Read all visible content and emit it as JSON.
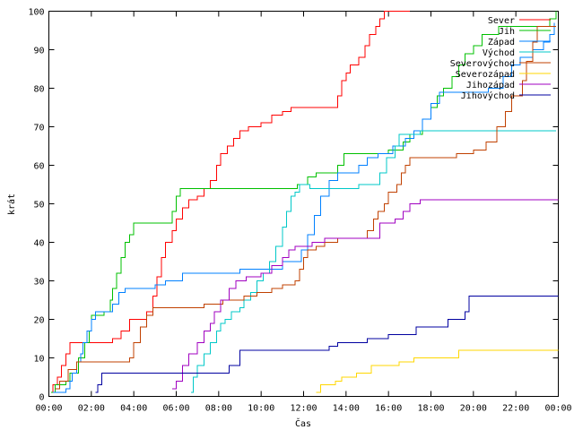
{
  "chart_data": {
    "type": "line",
    "step": true,
    "title": "",
    "xlabel": "Čas",
    "ylabel": "krát",
    "xlim": [
      0,
      24
    ],
    "ylim": [
      0,
      100
    ],
    "grid": false,
    "legend_position": "top-right",
    "x_ticks": [
      {
        "value": 0,
        "label": "00:00"
      },
      {
        "value": 2,
        "label": "02:00"
      },
      {
        "value": 4,
        "label": "04:00"
      },
      {
        "value": 6,
        "label": "06:00"
      },
      {
        "value": 8,
        "label": "08:00"
      },
      {
        "value": 10,
        "label": "10:00"
      },
      {
        "value": 12,
        "label": "12:00"
      },
      {
        "value": 14,
        "label": "14:00"
      },
      {
        "value": 16,
        "label": "16:00"
      },
      {
        "value": 18,
        "label": "18:00"
      },
      {
        "value": 20,
        "label": "20:00"
      },
      {
        "value": 22,
        "label": "22:00"
      },
      {
        "value": 24,
        "label": "00:00"
      }
    ],
    "y_ticks": [
      {
        "value": 0,
        "label": "0"
      },
      {
        "value": 10,
        "label": "10"
      },
      {
        "value": 20,
        "label": "20"
      },
      {
        "value": 30,
        "label": "30"
      },
      {
        "value": 40,
        "label": "40"
      },
      {
        "value": 50,
        "label": "50"
      },
      {
        "value": 60,
        "label": "60"
      },
      {
        "value": 70,
        "label": "70"
      },
      {
        "value": 80,
        "label": "80"
      },
      {
        "value": 90,
        "label": "90"
      },
      {
        "value": 100,
        "label": "100"
      }
    ],
    "series": [
      {
        "name": "Sever",
        "color": "#ff0000",
        "points": [
          [
            0.1,
            1
          ],
          [
            0.2,
            3
          ],
          [
            0.4,
            5
          ],
          [
            0.6,
            8
          ],
          [
            0.8,
            11
          ],
          [
            1.0,
            14
          ],
          [
            3.0,
            15
          ],
          [
            3.4,
            17
          ],
          [
            3.8,
            20
          ],
          [
            4.6,
            22
          ],
          [
            4.9,
            26
          ],
          [
            5.1,
            31
          ],
          [
            5.3,
            36
          ],
          [
            5.5,
            40
          ],
          [
            5.8,
            43
          ],
          [
            6.0,
            46
          ],
          [
            6.3,
            49
          ],
          [
            6.6,
            51
          ],
          [
            7.0,
            52
          ],
          [
            7.3,
            54
          ],
          [
            7.6,
            56
          ],
          [
            7.9,
            60
          ],
          [
            8.1,
            63
          ],
          [
            8.4,
            65
          ],
          [
            8.7,
            67
          ],
          [
            9.0,
            69
          ],
          [
            9.4,
            70
          ],
          [
            10.0,
            71
          ],
          [
            10.5,
            73
          ],
          [
            11.0,
            74
          ],
          [
            11.4,
            75
          ],
          [
            13.6,
            78
          ],
          [
            13.8,
            82
          ],
          [
            14.0,
            84
          ],
          [
            14.2,
            86
          ],
          [
            14.6,
            88
          ],
          [
            14.9,
            91
          ],
          [
            15.1,
            94
          ],
          [
            15.4,
            96
          ],
          [
            15.6,
            98
          ],
          [
            15.8,
            100
          ],
          [
            17.0,
            100
          ]
        ]
      },
      {
        "name": "Jih",
        "color": "#00c000",
        "points": [
          [
            0.1,
            1
          ],
          [
            0.3,
            3
          ],
          [
            0.8,
            4
          ],
          [
            1.0,
            6
          ],
          [
            1.4,
            10
          ],
          [
            1.7,
            14
          ],
          [
            1.9,
            17
          ],
          [
            2.0,
            21
          ],
          [
            2.6,
            22
          ],
          [
            2.9,
            25
          ],
          [
            3.0,
            28
          ],
          [
            3.2,
            32
          ],
          [
            3.4,
            36
          ],
          [
            3.6,
            40
          ],
          [
            3.8,
            42
          ],
          [
            4.0,
            45
          ],
          [
            5.8,
            48
          ],
          [
            6.0,
            52
          ],
          [
            6.2,
            54
          ],
          [
            11.7,
            55
          ],
          [
            12.2,
            57
          ],
          [
            12.6,
            58
          ],
          [
            13.6,
            60
          ],
          [
            13.9,
            63
          ],
          [
            16.0,
            64
          ],
          [
            16.7,
            66
          ],
          [
            17.0,
            68
          ],
          [
            17.6,
            72
          ],
          [
            18.0,
            75
          ],
          [
            18.3,
            78
          ],
          [
            18.6,
            80
          ],
          [
            19.0,
            83
          ],
          [
            19.3,
            86
          ],
          [
            19.6,
            89
          ],
          [
            20.0,
            91
          ],
          [
            20.4,
            94
          ],
          [
            21.2,
            96
          ],
          [
            23.6,
            98
          ],
          [
            23.9,
            100
          ]
        ]
      },
      {
        "name": "Západ",
        "color": "#0080ff",
        "points": [
          [
            0.2,
            1
          ],
          [
            0.8,
            2
          ],
          [
            1.0,
            4
          ],
          [
            1.1,
            6
          ],
          [
            1.3,
            9
          ],
          [
            1.5,
            11
          ],
          [
            1.6,
            14
          ],
          [
            1.8,
            17
          ],
          [
            2.0,
            20
          ],
          [
            2.2,
            22
          ],
          [
            3.0,
            24
          ],
          [
            3.3,
            27
          ],
          [
            3.6,
            28
          ],
          [
            5.0,
            29
          ],
          [
            5.5,
            30
          ],
          [
            6.3,
            32
          ],
          [
            9.0,
            33
          ],
          [
            11.0,
            35
          ],
          [
            11.9,
            38
          ],
          [
            12.2,
            42
          ],
          [
            12.5,
            47
          ],
          [
            12.8,
            52
          ],
          [
            13.2,
            56
          ],
          [
            13.6,
            58
          ],
          [
            14.6,
            60
          ],
          [
            15.0,
            62
          ],
          [
            15.5,
            63
          ],
          [
            16.2,
            65
          ],
          [
            16.8,
            67
          ],
          [
            17.2,
            69
          ],
          [
            17.6,
            72
          ],
          [
            18.0,
            76
          ],
          [
            18.4,
            79
          ],
          [
            20.7,
            80
          ],
          [
            21.4,
            83
          ],
          [
            21.8,
            86
          ],
          [
            22.2,
            88
          ],
          [
            22.8,
            90
          ],
          [
            23.3,
            92
          ],
          [
            23.6,
            94
          ],
          [
            23.8,
            97
          ]
        ]
      },
      {
        "name": "Východ",
        "color": "#00c8c8",
        "points": [
          [
            6.7,
            1
          ],
          [
            6.8,
            5
          ],
          [
            7.0,
            8
          ],
          [
            7.3,
            11
          ],
          [
            7.6,
            14
          ],
          [
            7.9,
            17
          ],
          [
            8.1,
            19
          ],
          [
            8.3,
            20
          ],
          [
            8.6,
            22
          ],
          [
            9.0,
            23
          ],
          [
            9.2,
            25
          ],
          [
            9.5,
            27
          ],
          [
            9.8,
            30
          ],
          [
            10.1,
            32
          ],
          [
            10.4,
            35
          ],
          [
            10.7,
            39
          ],
          [
            11.0,
            44
          ],
          [
            11.2,
            48
          ],
          [
            11.4,
            52
          ],
          [
            11.6,
            53
          ],
          [
            11.8,
            55
          ],
          [
            12.3,
            54
          ],
          [
            14.6,
            55
          ],
          [
            15.6,
            58
          ],
          [
            15.9,
            62
          ],
          [
            16.3,
            65
          ],
          [
            16.5,
            68
          ],
          [
            17.5,
            69
          ],
          [
            23.9,
            69
          ]
        ]
      },
      {
        "name": "Severovýchod",
        "color": "#c04000",
        "points": [
          [
            0.3,
            2
          ],
          [
            0.5,
            4
          ],
          [
            0.9,
            7
          ],
          [
            1.3,
            9
          ],
          [
            3.8,
            10
          ],
          [
            4.0,
            14
          ],
          [
            4.3,
            18
          ],
          [
            4.6,
            21
          ],
          [
            4.9,
            23
          ],
          [
            6.5,
            23
          ],
          [
            7.3,
            24
          ],
          [
            8.2,
            25
          ],
          [
            9.2,
            26
          ],
          [
            9.8,
            27
          ],
          [
            10.5,
            28
          ],
          [
            11.0,
            29
          ],
          [
            11.6,
            30
          ],
          [
            11.8,
            33
          ],
          [
            12.0,
            36
          ],
          [
            12.2,
            38
          ],
          [
            12.6,
            39
          ],
          [
            13.0,
            40
          ],
          [
            13.6,
            41
          ],
          [
            15.0,
            43
          ],
          [
            15.3,
            46
          ],
          [
            15.5,
            48
          ],
          [
            15.8,
            50
          ],
          [
            16.0,
            53
          ],
          [
            16.4,
            55
          ],
          [
            16.6,
            58
          ],
          [
            16.8,
            60
          ],
          [
            17.0,
            62
          ],
          [
            18.3,
            62
          ],
          [
            19.2,
            63
          ],
          [
            20.0,
            64
          ],
          [
            20.6,
            66
          ],
          [
            21.1,
            70
          ],
          [
            21.5,
            74
          ],
          [
            21.8,
            78
          ],
          [
            22.3,
            82
          ],
          [
            22.5,
            87
          ],
          [
            22.8,
            92
          ],
          [
            23.0,
            96
          ],
          [
            23.9,
            96
          ]
        ]
      },
      {
        "name": "Severozápad",
        "color": "#ffd700",
        "points": [
          [
            12.6,
            1
          ],
          [
            12.8,
            3
          ],
          [
            13.5,
            4
          ],
          [
            13.8,
            5
          ],
          [
            14.5,
            6
          ],
          [
            15.2,
            8
          ],
          [
            16.5,
            9
          ],
          [
            17.2,
            10
          ],
          [
            19.3,
            12
          ],
          [
            24.0,
            12
          ]
        ]
      },
      {
        "name": "Jihozápad",
        "color": "#a000c0",
        "points": [
          [
            5.8,
            2
          ],
          [
            6.0,
            4
          ],
          [
            6.3,
            8
          ],
          [
            6.6,
            11
          ],
          [
            7.0,
            14
          ],
          [
            7.3,
            17
          ],
          [
            7.6,
            19
          ],
          [
            7.8,
            22
          ],
          [
            8.1,
            25
          ],
          [
            8.5,
            28
          ],
          [
            8.8,
            30
          ],
          [
            9.3,
            31
          ],
          [
            10.0,
            32
          ],
          [
            10.5,
            34
          ],
          [
            11.0,
            36
          ],
          [
            11.3,
            38
          ],
          [
            11.6,
            39
          ],
          [
            12.4,
            40
          ],
          [
            13.0,
            41
          ],
          [
            15.6,
            45
          ],
          [
            16.3,
            46
          ],
          [
            16.7,
            48
          ],
          [
            17.0,
            50
          ],
          [
            17.5,
            51
          ],
          [
            24.0,
            51
          ]
        ]
      },
      {
        "name": "Jihovýchod",
        "color": "#0000a0",
        "points": [
          [
            2.2,
            1
          ],
          [
            2.3,
            3
          ],
          [
            2.5,
            6
          ],
          [
            3.0,
            6
          ],
          [
            5.5,
            6
          ],
          [
            8.5,
            8
          ],
          [
            9.0,
            12
          ],
          [
            9.6,
            12
          ],
          [
            13.2,
            13
          ],
          [
            13.6,
            14
          ],
          [
            15.0,
            15
          ],
          [
            16.0,
            16
          ],
          [
            17.3,
            18
          ],
          [
            18.5,
            18
          ],
          [
            18.8,
            20
          ],
          [
            19.6,
            22
          ],
          [
            19.8,
            26
          ],
          [
            24.0,
            26
          ]
        ]
      }
    ]
  }
}
